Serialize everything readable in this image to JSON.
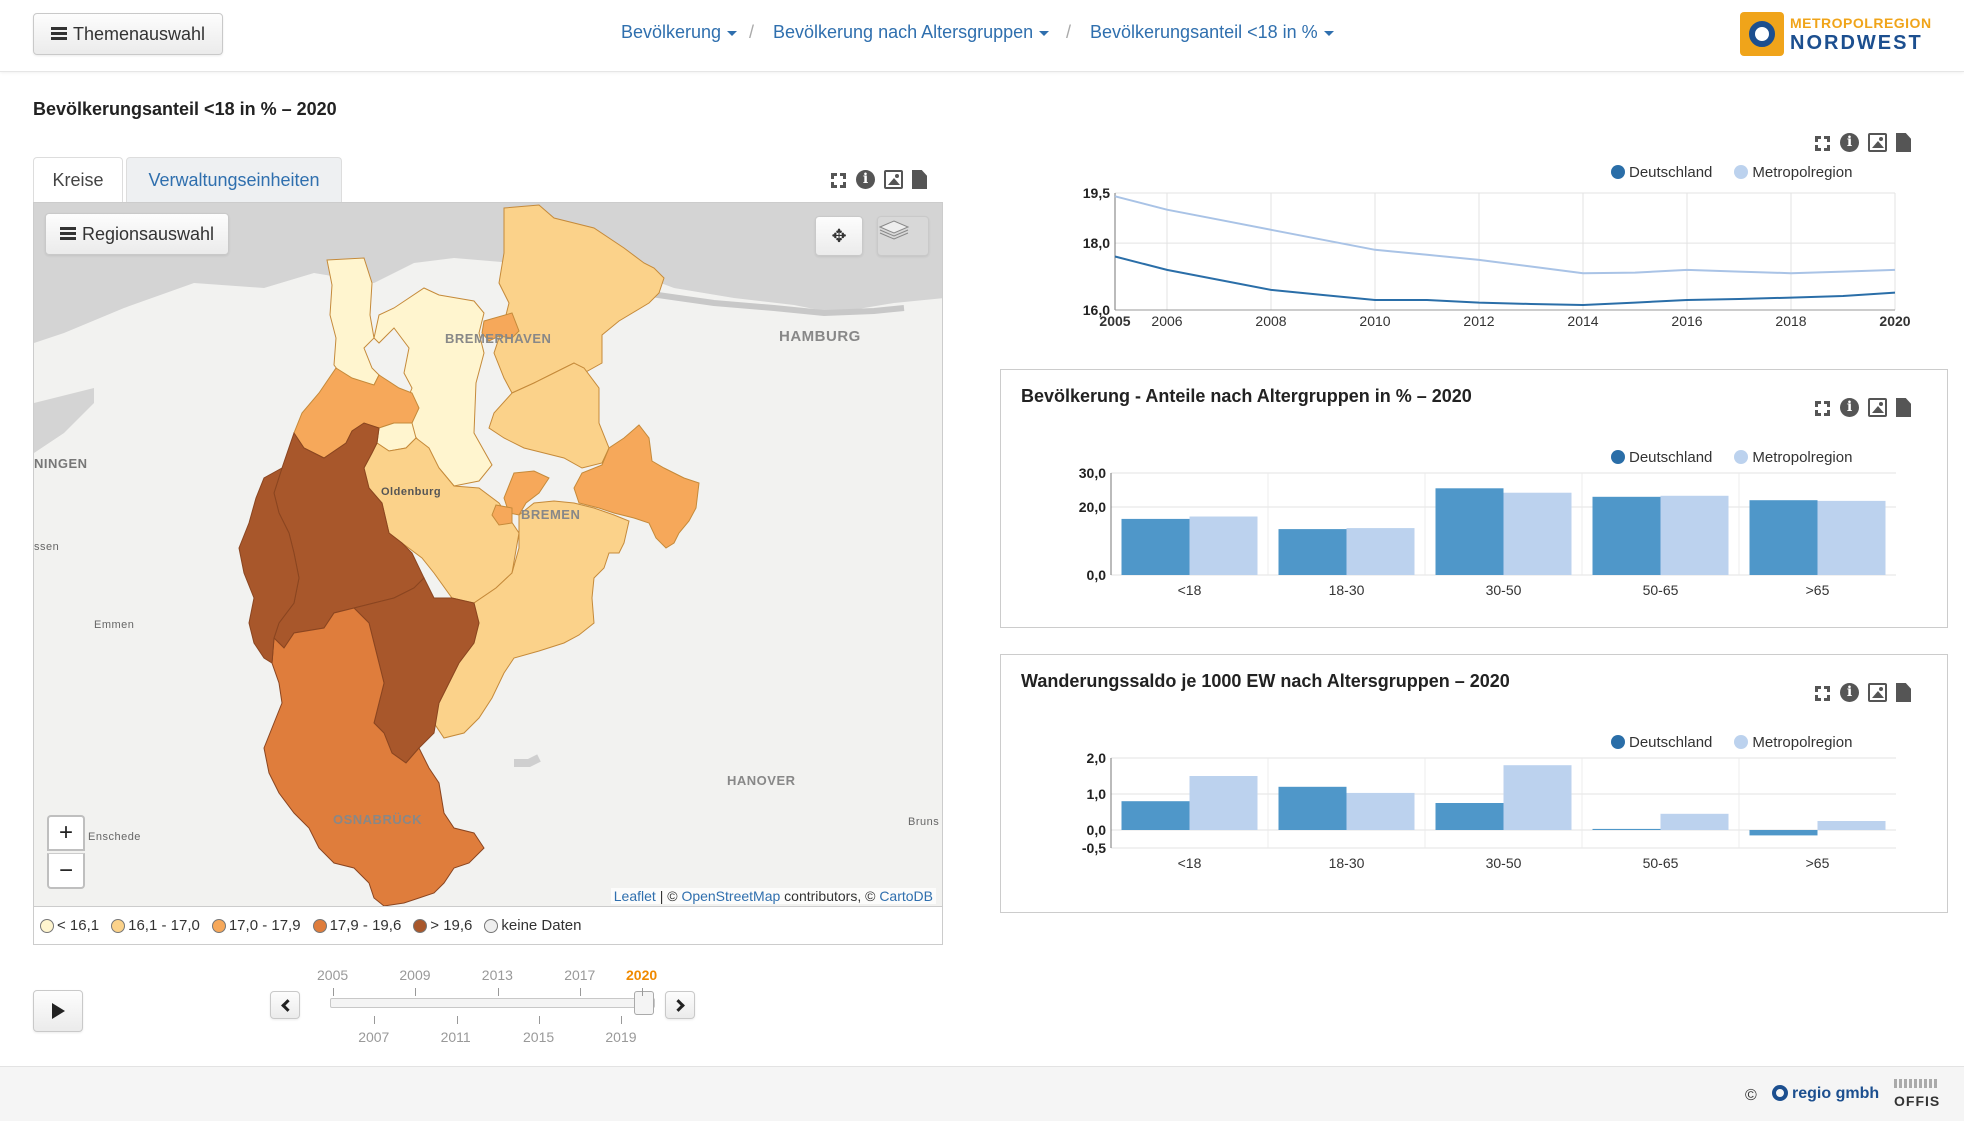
{
  "header": {
    "theme_button": "Themenauswahl",
    "breadcrumbs": [
      "Bevölkerung",
      "Bevölkerung nach Altersgruppen",
      "Bevölkerungsanteil <18 in %"
    ],
    "separator": "/",
    "logo_line1": "METROPOLREGION",
    "logo_line2": "NORDWEST"
  },
  "page_title": "Bevölkerungsanteil <18 in % – 2020",
  "tabs": [
    "Kreise",
    "Verwaltungseinheiten"
  ],
  "map": {
    "region_button": "Regionsauswahl",
    "labels": {
      "bremerhaven": "BREMERHAVEN",
      "hamburg": "HAMBURG",
      "oldenburg": "Oldenburg",
      "bremen": "BREMEN",
      "groningen": "NINGEN",
      "assen": "ssen",
      "emmen": "Emmen",
      "hanover": "HANOVER",
      "osnabrueck": "OSNABRÜCK",
      "enschede": "Enschede",
      "brunswick": "Bruns"
    },
    "zoom_in": "+",
    "zoom_out": "−",
    "attribution": {
      "leaflet": "Leaflet",
      "sep": " | © ",
      "osm": "OpenStreetMap",
      "contrib": " contributors, © ",
      "cartodb": "CartoDB"
    },
    "colors": {
      "c1": "#fff5cf",
      "c2": "#fbd28a",
      "c3": "#f6a85a",
      "c4": "#df7d3c",
      "c5": "#a8572b",
      "none": "#eeeeee"
    }
  },
  "legend": [
    {
      "label": "< 16,1",
      "color": "#fff5cf"
    },
    {
      "label": "16,1 - 17,0",
      "color": "#fbd28a"
    },
    {
      "label": "17,0 - 17,9",
      "color": "#f6a85a"
    },
    {
      "label": "17,9 - 19,6",
      "color": "#df7d3c"
    },
    {
      "label": "> 19,6",
      "color": "#a8572b"
    },
    {
      "label": "keine Daten",
      "color": "#eeeeee"
    }
  ],
  "timeline": {
    "top_years": [
      "2005",
      "2009",
      "2013",
      "2017",
      "2020"
    ],
    "bottom_years": [
      "2007",
      "2011",
      "2015",
      "2019"
    ],
    "selected": "2020"
  },
  "colors": {
    "deutschland": "#4f97c9",
    "metropolregion": "#bcd2ee",
    "line_deutschland": "#2a6ea8",
    "line_metropol": "#a9c3e6"
  },
  "chart_data": [
    {
      "type": "line",
      "title": "",
      "x": [
        2005,
        2006,
        2007,
        2008,
        2009,
        2010,
        2011,
        2012,
        2013,
        2014,
        2015,
        2016,
        2017,
        2018,
        2019,
        2020
      ],
      "x_ticks": [
        "2005",
        "2006",
        "2008",
        "2010",
        "2012",
        "2014",
        "2016",
        "2018",
        "2020"
      ],
      "y_ticks": [
        "19,5",
        "18,0",
        "16,0"
      ],
      "ylim": [
        16.0,
        19.5
      ],
      "series": [
        {
          "name": "Deutschland",
          "values": [
            17.6,
            17.2,
            16.9,
            16.6,
            16.45,
            16.3,
            16.3,
            16.22,
            16.18,
            16.15,
            16.22,
            16.3,
            16.33,
            16.37,
            16.42,
            16.52
          ]
        },
        {
          "name": "Metropolregion",
          "values": [
            19.4,
            19.0,
            18.7,
            18.4,
            18.1,
            17.8,
            17.65,
            17.5,
            17.3,
            17.1,
            17.12,
            17.2,
            17.15,
            17.1,
            17.15,
            17.2
          ]
        }
      ]
    },
    {
      "type": "bar",
      "title": "Bevölkerung - Anteile nach Altergruppen in % – 2020",
      "categories": [
        "<18",
        "18-30",
        "30-50",
        "50-65",
        ">65"
      ],
      "y_ticks": [
        "30,0",
        "20,0",
        "0,0"
      ],
      "ylim": [
        0,
        30
      ],
      "series": [
        {
          "name": "Deutschland",
          "values": [
            16.5,
            13.5,
            25.5,
            23.0,
            22.0
          ]
        },
        {
          "name": "Metropolregion",
          "values": [
            17.2,
            13.8,
            24.2,
            23.3,
            21.8
          ]
        }
      ]
    },
    {
      "type": "bar",
      "title": "Wanderungssaldo je 1000 EW nach Altersgruppen – 2020",
      "categories": [
        "<18",
        "18-30",
        "30-50",
        "50-65",
        ">65"
      ],
      "y_ticks": [
        "2,0",
        "1,0",
        "0,0",
        "-0,5"
      ],
      "ylim": [
        -0.5,
        2.0
      ],
      "series": [
        {
          "name": "Deutschland",
          "values": [
            0.8,
            1.2,
            0.75,
            0.03,
            -0.15
          ]
        },
        {
          "name": "Metropolregion",
          "values": [
            1.5,
            1.03,
            1.8,
            0.45,
            0.25
          ]
        }
      ]
    }
  ],
  "footer": {
    "copyright": "©",
    "regio": "regio gmbh",
    "offis": "OFFIS"
  }
}
